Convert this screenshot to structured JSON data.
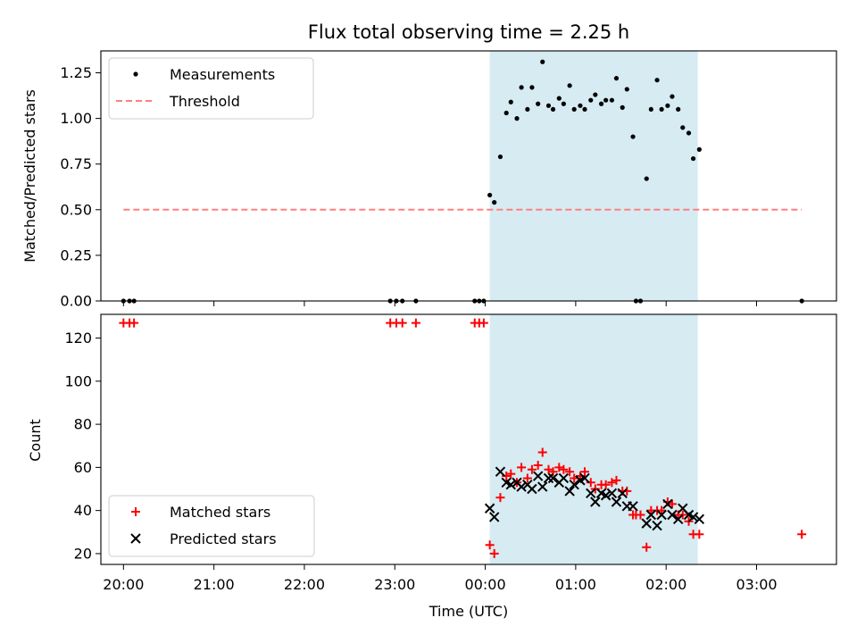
{
  "chart_data": [
    {
      "type": "scatter",
      "title": "Flux total observing time = 2.25 h",
      "xlabel": "",
      "ylabel": "Matched/Predicted stars",
      "xlim": [
        "19:45",
        "03:53"
      ],
      "ylim": [
        0,
        1.37
      ],
      "yticks": [
        0.0,
        0.25,
        0.5,
        0.75,
        1.0,
        1.25
      ],
      "ytick_labels": [
        "0.00",
        "0.25",
        "0.50",
        "0.75",
        "1.00",
        "1.25"
      ],
      "xticks": [
        "20:00",
        "21:00",
        "22:00",
        "23:00",
        "00:00",
        "01:00",
        "02:00",
        "03:00"
      ],
      "legend": {
        "position": "top-left",
        "entries": [
          "Measurements",
          "Threshold"
        ]
      },
      "shaded_span": {
        "start": "00:03",
        "end": "02:21",
        "color": "#add8e6"
      },
      "threshold": {
        "name": "Threshold",
        "y": 0.5,
        "x_start": "20:00",
        "x_end": "03:30",
        "color": "#ff7f7f"
      },
      "series": [
        {
          "name": "Measurements",
          "color": "#000000",
          "points": [
            [
              "20:00",
              0
            ],
            [
              "20:04",
              0
            ],
            [
              "20:07",
              0
            ],
            [
              "22:57",
              0
            ],
            [
              "23:01",
              0
            ],
            [
              "23:05",
              0
            ],
            [
              "23:14",
              0
            ],
            [
              "23:53",
              0
            ],
            [
              "23:56",
              0
            ],
            [
              "23:59",
              0
            ],
            [
              "00:03",
              0.58
            ],
            [
              "00:06",
              0.54
            ],
            [
              "00:10",
              0.79
            ],
            [
              "00:14",
              1.03
            ],
            [
              "00:17",
              1.09
            ],
            [
              "00:21",
              1.0
            ],
            [
              "00:24",
              1.17
            ],
            [
              "00:28",
              1.05
            ],
            [
              "00:31",
              1.17
            ],
            [
              "00:35",
              1.08
            ],
            [
              "00:38",
              1.31
            ],
            [
              "00:42",
              1.07
            ],
            [
              "00:45",
              1.05
            ],
            [
              "00:49",
              1.11
            ],
            [
              "00:52",
              1.08
            ],
            [
              "00:56",
              1.18
            ],
            [
              "00:59",
              1.05
            ],
            [
              "01:03",
              1.07
            ],
            [
              "01:06",
              1.05
            ],
            [
              "01:10",
              1.1
            ],
            [
              "01:13",
              1.13
            ],
            [
              "01:17",
              1.08
            ],
            [
              "01:20",
              1.1
            ],
            [
              "01:24",
              1.1
            ],
            [
              "01:27",
              1.22
            ],
            [
              "01:31",
              1.06
            ],
            [
              "01:34",
              1.16
            ],
            [
              "01:38",
              0.9
            ],
            [
              "01:40",
              0
            ],
            [
              "01:43",
              0
            ],
            [
              "01:47",
              0.67
            ],
            [
              "01:50",
              1.05
            ],
            [
              "01:54",
              1.21
            ],
            [
              "01:57",
              1.05
            ],
            [
              "02:01",
              1.07
            ],
            [
              "02:04",
              1.12
            ],
            [
              "02:08",
              1.05
            ],
            [
              "02:11",
              0.95
            ],
            [
              "02:15",
              0.92
            ],
            [
              "02:18",
              0.78
            ],
            [
              "02:22",
              0.83
            ],
            [
              "03:30",
              0
            ]
          ]
        }
      ]
    },
    {
      "type": "scatter",
      "title": "",
      "xlabel": "Time (UTC)",
      "ylabel": "Count",
      "xlim": [
        "19:45",
        "03:53"
      ],
      "ylim": [
        15,
        131
      ],
      "yticks": [
        20,
        40,
        60,
        80,
        100,
        120
      ],
      "ytick_labels": [
        "20",
        "40",
        "60",
        "80",
        "100",
        "120"
      ],
      "xticks": [
        "20:00",
        "21:00",
        "22:00",
        "23:00",
        "00:00",
        "01:00",
        "02:00",
        "03:00"
      ],
      "legend": {
        "position": "bottom-left",
        "entries": [
          "Matched stars",
          "Predicted stars"
        ]
      },
      "shaded_span": {
        "start": "00:03",
        "end": "02:21",
        "color": "#add8e6"
      },
      "series": [
        {
          "name": "Matched stars",
          "marker": "+",
          "color": "#ff0000",
          "points": [
            [
              "20:00",
              127
            ],
            [
              "20:04",
              127
            ],
            [
              "20:07",
              127
            ],
            [
              "22:57",
              127
            ],
            [
              "23:01",
              127
            ],
            [
              "23:05",
              127
            ],
            [
              "23:14",
              127
            ],
            [
              "23:53",
              127
            ],
            [
              "23:56",
              127
            ],
            [
              "23:59",
              127
            ],
            [
              "00:03",
              24
            ],
            [
              "00:06",
              20
            ],
            [
              "00:10",
              46
            ],
            [
              "00:14",
              56
            ],
            [
              "00:17",
              57
            ],
            [
              "00:21",
              53
            ],
            [
              "00:24",
              60
            ],
            [
              "00:28",
              55
            ],
            [
              "00:31",
              59
            ],
            [
              "00:35",
              61
            ],
            [
              "00:38",
              67
            ],
            [
              "00:42",
              59
            ],
            [
              "00:45",
              58
            ],
            [
              "00:49",
              60
            ],
            [
              "00:52",
              59
            ],
            [
              "00:56",
              58
            ],
            [
              "00:59",
              55
            ],
            [
              "01:03",
              56
            ],
            [
              "01:06",
              58
            ],
            [
              "01:10",
              53
            ],
            [
              "01:13",
              50
            ],
            [
              "01:17",
              52
            ],
            [
              "01:20",
              52
            ],
            [
              "01:24",
              53
            ],
            [
              "01:27",
              54
            ],
            [
              "01:31",
              49
            ],
            [
              "01:34",
              49
            ],
            [
              "01:38",
              38
            ],
            [
              "01:40",
              38
            ],
            [
              "01:43",
              38
            ],
            [
              "01:47",
              23
            ],
            [
              "01:50",
              40
            ],
            [
              "01:54",
              40
            ],
            [
              "01:57",
              40
            ],
            [
              "02:01",
              44
            ],
            [
              "02:04",
              43
            ],
            [
              "02:08",
              38
            ],
            [
              "02:11",
              38
            ],
            [
              "02:15",
              35
            ],
            [
              "02:18",
              29
            ],
            [
              "02:22",
              29
            ],
            [
              "03:30",
              29
            ]
          ]
        },
        {
          "name": "Predicted stars",
          "marker": "x",
          "color": "#000000",
          "points": [
            [
              "00:03",
              41
            ],
            [
              "00:06",
              37
            ],
            [
              "00:10",
              58
            ],
            [
              "00:14",
              53
            ],
            [
              "00:17",
              52
            ],
            [
              "00:21",
              53
            ],
            [
              "00:24",
              51
            ],
            [
              "00:28",
              52
            ],
            [
              "00:31",
              50
            ],
            [
              "00:35",
              56
            ],
            [
              "00:38",
              51
            ],
            [
              "00:42",
              55
            ],
            [
              "00:45",
              55
            ],
            [
              "00:49",
              53
            ],
            [
              "00:52",
              55
            ],
            [
              "00:56",
              49
            ],
            [
              "00:59",
              52
            ],
            [
              "01:03",
              54
            ],
            [
              "01:06",
              55
            ],
            [
              "01:10",
              48
            ],
            [
              "01:13",
              44
            ],
            [
              "01:17",
              48
            ],
            [
              "01:20",
              47
            ],
            [
              "01:24",
              48
            ],
            [
              "01:27",
              44
            ],
            [
              "01:31",
              48
            ],
            [
              "01:34",
              42
            ],
            [
              "01:38",
              42
            ],
            [
              "01:47",
              34
            ],
            [
              "01:50",
              38
            ],
            [
              "01:54",
              33
            ],
            [
              "01:57",
              38
            ],
            [
              "02:01",
              43
            ],
            [
              "02:04",
              38
            ],
            [
              "02:08",
              36
            ],
            [
              "02:11",
              41
            ],
            [
              "02:15",
              38
            ],
            [
              "02:18",
              37
            ],
            [
              "02:22",
              36
            ]
          ]
        }
      ]
    }
  ]
}
